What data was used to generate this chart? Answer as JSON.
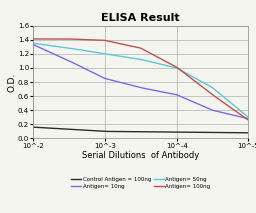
{
  "title": "ELISA Result",
  "ylabel": "O.D.",
  "xlabel": "Serial Dilutions  of Antibody",
  "ylim": [
    0,
    1.6
  ],
  "yticks": [
    0,
    0.2,
    0.4,
    0.6,
    0.8,
    1.0,
    1.2,
    1.4,
    1.6
  ],
  "xtick_labels": [
    "10^-2",
    "10^-3",
    "10^-4",
    "10^-5"
  ],
  "xtick_positions": [
    0,
    1,
    2,
    3
  ],
  "series": [
    {
      "label": "Control Antigen = 100ng",
      "color": "#2a2a2a",
      "x": [
        0,
        1,
        2,
        3
      ],
      "y": [
        0.16,
        0.1,
        0.09,
        0.08
      ]
    },
    {
      "label": "Antigen= 10ng",
      "color": "#7B68EE",
      "x": [
        0,
        0.5,
        1,
        1.5,
        2,
        2.5,
        3
      ],
      "y": [
        1.33,
        1.1,
        0.85,
        0.72,
        0.62,
        0.4,
        0.28
      ]
    },
    {
      "label": "Antigen= 50ng",
      "color": "#5bc8d8",
      "x": [
        0,
        0.5,
        1,
        1.5,
        2,
        2.5,
        3
      ],
      "y": [
        1.35,
        1.28,
        1.2,
        1.12,
        1.0,
        0.72,
        0.3
      ]
    },
    {
      "label": "Antigen= 100ng",
      "color": "#c0504d",
      "x": [
        0,
        0.5,
        1,
        1.5,
        2,
        2.5,
        3
      ],
      "y": [
        1.41,
        1.41,
        1.39,
        1.28,
        1.01,
        0.62,
        0.26
      ]
    }
  ],
  "legend_items": [
    {
      "label": "Control Antigen = 100ng",
      "color": "#2a2a2a"
    },
    {
      "label": "Antigen= 10ng",
      "color": "#7B68EE"
    },
    {
      "label": "Antigen= 50ng",
      "color": "#5bc8d8"
    },
    {
      "label": "Antigen= 100ng",
      "color": "#c0504d"
    }
  ],
  "background_color": "#f5f5f0",
  "grid_color": "#b0b0b0"
}
